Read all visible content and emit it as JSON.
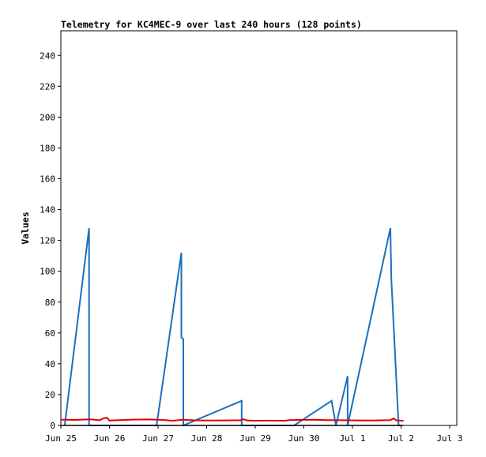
{
  "chart_data": {
    "type": "line",
    "title": "Telemetry for KC4MEC-9 over last 240 hours (128 points)",
    "xlabel": "",
    "ylabel": "Values",
    "x_ticks": [
      "Jun 25",
      "Jun 26",
      "Jun 27",
      "Jun 28",
      "Jun 29",
      "Jun 30",
      "Jul 1",
      "Jul 2",
      "Jul 3"
    ],
    "xlim": [
      0,
      8.4
    ],
    "ylim": [
      0,
      256
    ],
    "y_ticks": [
      0,
      20,
      40,
      60,
      80,
      100,
      120,
      140,
      160,
      180,
      200,
      220,
      240
    ],
    "grid": false,
    "legend": "none",
    "series": [
      {
        "color": "#1b6fc0",
        "x": [
          0.08,
          0.58,
          0.58,
          0.58,
          0.6,
          1.97,
          2.48,
          2.48,
          2.52,
          2.52,
          3.72,
          3.72,
          3.75,
          4.8,
          5.57,
          5.66,
          5.9,
          5.9,
          6.78,
          6.8,
          6.95,
          7.0
        ],
        "y": [
          0,
          128,
          0,
          0,
          0,
          0,
          112,
          57,
          56,
          0,
          16,
          0,
          0,
          0,
          16,
          0,
          32,
          0,
          128,
          95,
          0,
          0
        ]
      },
      {
        "color": "#e00000",
        "x": [
          0.0,
          0.3,
          0.6,
          0.8,
          0.85,
          0.9,
          0.95,
          1.0,
          1.2,
          1.5,
          1.8,
          2.1,
          2.3,
          2.5,
          2.8,
          3.1,
          3.4,
          3.7,
          3.75,
          3.8,
          3.85,
          4.0,
          4.3,
          4.6,
          4.7,
          4.9,
          5.2,
          5.5,
          5.8,
          6.1,
          6.4,
          6.78,
          6.85,
          6.9,
          7.05
        ],
        "y": [
          3.8,
          3.6,
          4.0,
          3.4,
          4.2,
          4.8,
          5.0,
          3.2,
          3.5,
          3.8,
          3.9,
          3.6,
          3.0,
          3.7,
          3.3,
          3.2,
          3.3,
          3.4,
          4.0,
          3.6,
          3.2,
          3.0,
          3.1,
          3.0,
          3.5,
          3.6,
          3.7,
          3.5,
          3.4,
          3.3,
          3.2,
          3.5,
          4.5,
          3.3,
          3.0
        ]
      },
      {
        "color": "#000000",
        "x": [
          0.0,
          7.05
        ],
        "y": [
          0,
          0
        ]
      }
    ]
  }
}
